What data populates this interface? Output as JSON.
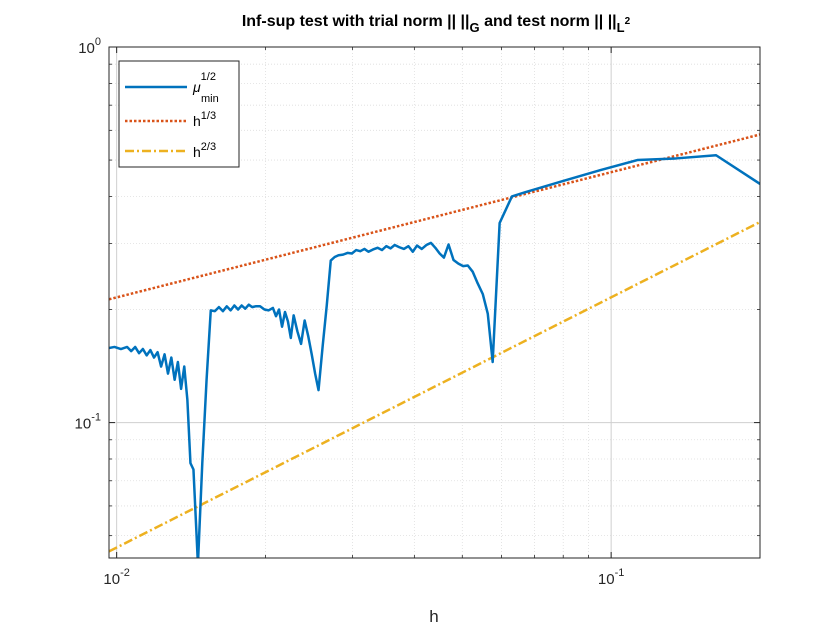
{
  "chart_data": {
    "type": "line",
    "title": {
      "prefix": "Inf-sup test with trial norm || ||",
      "sub1": "G",
      "middle": " and test norm || ||",
      "sub2": "L",
      "sub2_sup": "2"
    },
    "xlabel": "h",
    "ylabel": "",
    "xscale": "log",
    "yscale": "log",
    "xlim": [
      0.00965,
      0.2
    ],
    "ylim": [
      0.0436,
      1.0
    ],
    "x_ticks": [
      {
        "value": 0.01,
        "base": "10",
        "exp": "-2"
      },
      {
        "value": 0.1,
        "base": "10",
        "exp": "-1"
      }
    ],
    "y_ticks": [
      {
        "value": 0.1,
        "base": "10",
        "exp": "-1"
      },
      {
        "value": 1.0,
        "base": "10",
        "exp": "0"
      }
    ],
    "grid": true,
    "minor_grid": true,
    "legend_position": "top-left",
    "series": [
      {
        "name": "μ",
        "name_sup": "1/2",
        "name_sub": "min",
        "color": "#0072BD",
        "style": "solid",
        "x": [
          0.00965,
          0.0099,
          0.0102,
          0.0105,
          0.0107,
          0.0109,
          0.0111,
          0.0113,
          0.0115,
          0.0117,
          0.0119,
          0.0121,
          0.0123,
          0.0125,
          0.0127,
          0.0129,
          0.0131,
          0.0133,
          0.0135,
          0.0137,
          0.0139,
          0.0141,
          0.0143,
          0.0146,
          0.0149,
          0.0152,
          0.0155,
          0.0158,
          0.0161,
          0.0164,
          0.0167,
          0.017,
          0.0173,
          0.0176,
          0.0179,
          0.0182,
          0.0185,
          0.0188,
          0.0191,
          0.0195,
          0.0199,
          0.0203,
          0.0207,
          0.021,
          0.0213,
          0.0216,
          0.0219,
          0.0222,
          0.0225,
          0.0228,
          0.0232,
          0.0236,
          0.024,
          0.0244,
          0.0248,
          0.0252,
          0.0256,
          0.0261,
          0.0266,
          0.0271,
          0.0276,
          0.0281,
          0.0287,
          0.0293,
          0.0299,
          0.0305,
          0.0311,
          0.0317,
          0.0323,
          0.033,
          0.0337,
          0.0344,
          0.0351,
          0.0358,
          0.0365,
          0.0373,
          0.0381,
          0.0389,
          0.0397,
          0.0405,
          0.0414,
          0.0423,
          0.0432,
          0.0441,
          0.045,
          0.0459,
          0.0469,
          0.048,
          0.0491,
          0.0502,
          0.0513,
          0.0525,
          0.0537,
          0.055,
          0.0563,
          0.0576,
          0.0595,
          0.063,
          0.0668,
          0.08,
          0.095,
          0.113,
          0.135,
          0.163,
          0.2
        ],
        "y": [
          0.158,
          0.159,
          0.157,
          0.159,
          0.155,
          0.159,
          0.153,
          0.157,
          0.151,
          0.156,
          0.149,
          0.154,
          0.141,
          0.152,
          0.135,
          0.149,
          0.13,
          0.145,
          0.123,
          0.141,
          0.115,
          0.078,
          0.075,
          0.042,
          0.078,
          0.13,
          0.199,
          0.198,
          0.203,
          0.198,
          0.204,
          0.199,
          0.205,
          0.2,
          0.205,
          0.201,
          0.206,
          0.203,
          0.204,
          0.204,
          0.2,
          0.199,
          0.202,
          0.192,
          0.2,
          0.18,
          0.197,
          0.186,
          0.168,
          0.193,
          0.175,
          0.162,
          0.187,
          0.17,
          0.152,
          0.135,
          0.122,
          0.16,
          0.205,
          0.27,
          0.276,
          0.279,
          0.28,
          0.283,
          0.282,
          0.288,
          0.286,
          0.29,
          0.285,
          0.289,
          0.292,
          0.288,
          0.295,
          0.291,
          0.297,
          0.293,
          0.29,
          0.295,
          0.285,
          0.296,
          0.29,
          0.297,
          0.301,
          0.292,
          0.282,
          0.275,
          0.298,
          0.271,
          0.265,
          0.261,
          0.262,
          0.252,
          0.235,
          0.22,
          0.195,
          0.145,
          0.34,
          0.4,
          0.41,
          0.44,
          0.47,
          0.5,
          0.505,
          0.515,
          0.432
        ]
      },
      {
        "name": "h",
        "name_sup": "1/3",
        "color": "#D95319",
        "style": "dotted",
        "x": [
          0.00965,
          0.2
        ],
        "y": [
          0.2129,
          0.5848
        ]
      },
      {
        "name": "h",
        "name_sup": "2/3",
        "color": "#EDB120",
        "style": "dashdot",
        "x": [
          0.00965,
          0.2
        ],
        "y": [
          0.0454,
          0.342
        ]
      }
    ]
  }
}
